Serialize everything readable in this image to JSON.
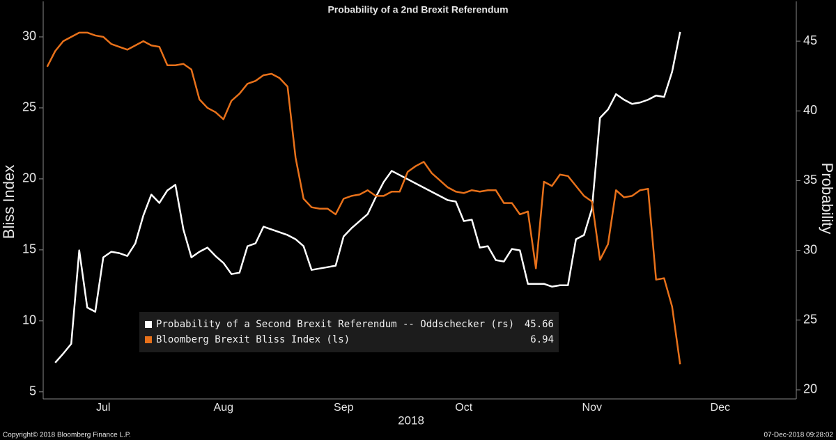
{
  "chart_data": {
    "type": "line",
    "title": "Probability of a 2nd Brexit Referendum",
    "ylabel": "Bliss Index",
    "y2label": "Probability",
    "xlabel": "2018",
    "source": "Copyright© 2018 Bloomberg Finance L.P.",
    "timestamp": "07-Dec-2018 09:28:02",
    "categories": [
      null,
      null,
      null,
      null,
      null,
      null,
      null,
      "Jul",
      null,
      null,
      null,
      null,
      null,
      null,
      null,
      null,
      null,
      null,
      null,
      null,
      null,
      null,
      "Aug",
      null,
      null,
      null,
      null,
      null,
      null,
      null,
      null,
      null,
      null,
      null,
      null,
      null,
      null,
      "Sep",
      null,
      null,
      null,
      null,
      null,
      null,
      null,
      null,
      null,
      null,
      null,
      null,
      null,
      null,
      "Oct",
      null,
      null,
      null,
      null,
      null,
      null,
      null,
      null,
      null,
      null,
      null,
      null,
      null,
      null,
      null,
      "Nov",
      null,
      null,
      null,
      null,
      null,
      null,
      null,
      null,
      null,
      null,
      null,
      null,
      null,
      null,
      null,
      "Dec",
      null,
      null,
      null,
      null,
      null,
      null,
      null,
      null,
      null
    ],
    "series": [
      {
        "name": "Probability of a Second Brexit Referendum -- Oddschecker (rs)",
        "color": "#ffffff",
        "axis": "y2",
        "values": [
          null,
          21.95,
          22.6,
          23.3,
          30,
          25.9,
          25.6,
          29.5,
          29.9,
          29.8,
          29.6,
          30.5,
          32.5,
          34,
          33.4,
          34.3,
          34.7,
          31.5,
          29.5,
          29.9,
          30.2,
          29.6,
          29.1,
          28.3,
          28.4,
          30.3,
          30.5,
          31.7,
          31.5,
          31.3,
          31.1,
          30.8,
          30.3,
          28.6,
          28.7,
          28.8,
          28.9,
          31,
          31.6,
          32.1,
          32.6,
          33.8,
          34.9,
          35.7,
          35.4,
          35.1,
          34.8,
          34.5,
          34.2,
          33.9,
          33.6,
          33.5,
          32.1,
          32.2,
          30.2,
          30.3,
          29.3,
          29.2,
          30.1,
          30.0,
          27.6,
          27.6,
          27.6,
          27.4,
          27.5,
          27.5,
          30.8,
          31.1,
          33,
          39.5,
          40.1,
          41.2,
          40.8,
          40.5,
          40.6,
          40.8,
          41.1,
          41.0,
          42.8,
          45.66,
          null,
          null,
          null,
          null,
          null,
          null,
          null,
          null,
          null,
          null,
          null,
          null,
          null,
          null
        ]
      },
      {
        "name": "Bloomberg Brexit Bliss Index (ls)",
        "color": "#e8711a",
        "values": [
          27.9,
          29,
          29.7,
          30,
          30.3,
          30.3,
          30.1,
          30,
          29.5,
          29.3,
          29.1,
          29.4,
          29.7,
          29.4,
          29.3,
          28,
          28,
          28.1,
          27.7,
          25.6,
          25,
          24.7,
          24.2,
          25.5,
          26,
          26.7,
          26.9,
          27.3,
          27.4,
          27.1,
          26.5,
          21.5,
          18.6,
          18,
          17.9,
          17.9,
          17.5,
          18.6,
          18.8,
          18.9,
          19.2,
          18.8,
          18.8,
          19.1,
          19.1,
          20.5,
          20.9,
          21.2,
          20.4,
          19.9,
          19.4,
          19.1,
          19,
          19.2,
          19.1,
          19.2,
          19.2,
          18.3,
          18.3,
          17.5,
          17.7,
          13.7,
          19.8,
          19.5,
          20.3,
          20.2,
          19.5,
          18.8,
          18.4,
          14.3,
          15.4,
          19.2,
          18.7,
          18.8,
          19.2,
          19.3,
          12.9,
          13,
          11,
          6.94,
          null,
          null,
          null,
          null,
          null,
          null,
          null,
          null,
          null,
          null,
          null,
          null,
          null,
          null
        ]
      }
    ],
    "ylim": [
      4.5,
      32.5
    ],
    "yticks": [
      5,
      10,
      15,
      20,
      25,
      30
    ],
    "y2lim": [
      19.35,
      47.85
    ],
    "y2ticks": [
      20,
      25,
      30,
      35,
      40,
      45
    ],
    "grid": false
  }
}
